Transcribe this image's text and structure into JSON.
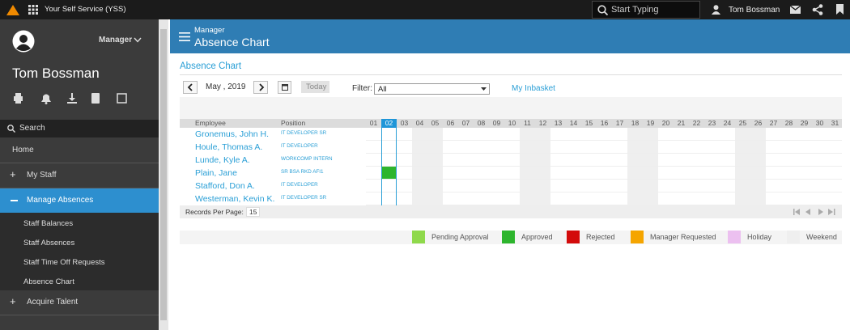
{
  "topbar": {
    "app_title": "Your Self Service (YSS)",
    "search_placeholder": "Start Typing",
    "user_name": "Tom Bossman"
  },
  "sidebar": {
    "role": "Manager",
    "user_name": "Tom Bossman",
    "search": "Search",
    "menu": [
      "Home",
      "My Staff",
      "Manage Absences",
      "Acquire Talent"
    ],
    "submenu": [
      "Staff Balances",
      "Staff Absences",
      "Staff Time Off Requests",
      "Absence Chart"
    ]
  },
  "header": {
    "section": "Manager",
    "title": "Absence Chart"
  },
  "content": {
    "title": "Absence Chart",
    "month": "May , 2019",
    "today_button": "Today",
    "filter_label": "Filter:",
    "filter_value": "All",
    "inbasket_link": "My Inbasket",
    "columns": {
      "employee": "Employee",
      "position": "Position"
    },
    "days": [
      "01",
      "02",
      "03",
      "04",
      "05",
      "06",
      "07",
      "08",
      "09",
      "10",
      "11",
      "12",
      "13",
      "14",
      "15",
      "16",
      "17",
      "18",
      "19",
      "20",
      "21",
      "22",
      "23",
      "24",
      "25",
      "26",
      "27",
      "28",
      "29",
      "30",
      "31"
    ],
    "weekend_days": [
      4,
      5,
      11,
      12,
      18,
      19,
      25,
      26
    ],
    "selected_day": 2,
    "rows": [
      {
        "employee": "Gronemus, John H.",
        "position": "IT DEVELOPER SR",
        "approved_days": []
      },
      {
        "employee": "Houle, Thomas A.",
        "position": "IT DEVELOPER",
        "approved_days": []
      },
      {
        "employee": "Lunde, Kyle A.",
        "position": "WORKCOMP INTERN",
        "approved_days": []
      },
      {
        "employee": "Plain, Jane",
        "position": "SR BSA RKD AFI1",
        "approved_days": [
          2
        ]
      },
      {
        "employee": "Stafford, Don A.",
        "position": "IT DEVELOPER",
        "approved_days": []
      },
      {
        "employee": "Westerman, Kevin K.",
        "position": "IT DEVELOPER SR",
        "approved_days": []
      }
    ],
    "records_per_page_label": "Records Per Page:",
    "records_per_page": 15,
    "legend": [
      {
        "label": "Pending Approval",
        "color": "#8fd94b"
      },
      {
        "label": "Approved",
        "color": "#2db52d"
      },
      {
        "label": "Rejected",
        "color": "#d30b0b"
      },
      {
        "label": "Manager Requested",
        "color": "#f5a500"
      },
      {
        "label": "Holiday",
        "color": "#ecc0f0"
      },
      {
        "label": "Weekend",
        "color": "#efefef"
      }
    ]
  }
}
